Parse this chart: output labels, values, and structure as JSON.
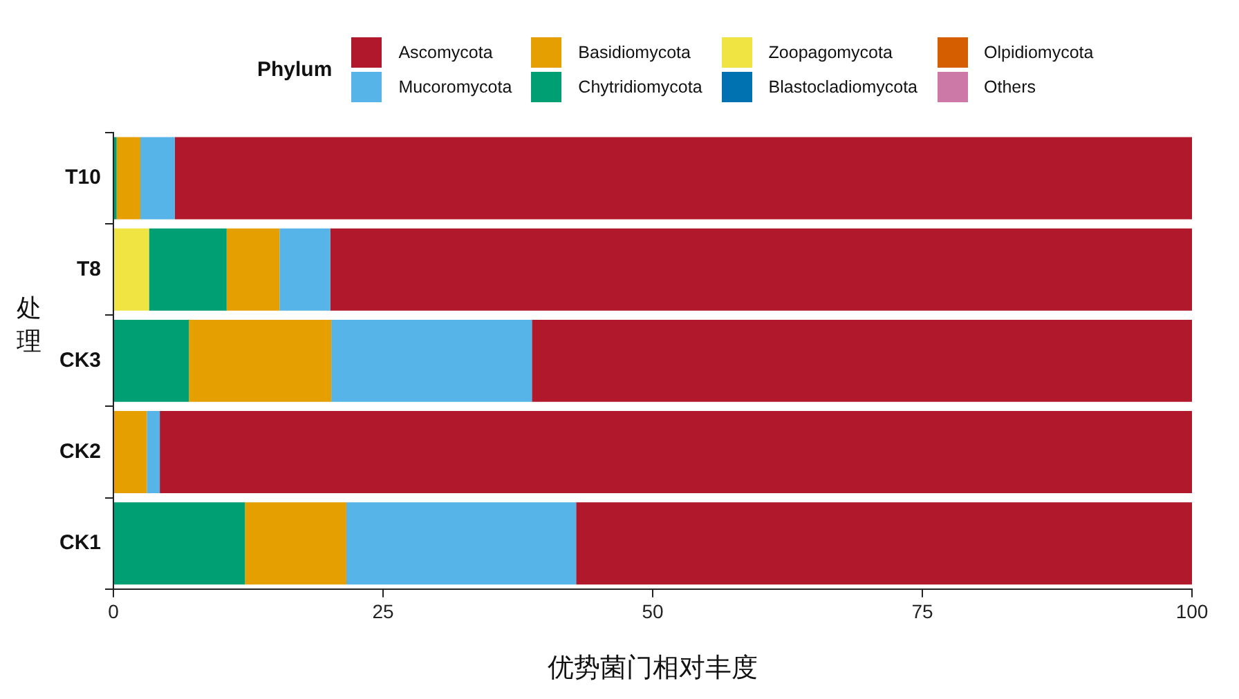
{
  "chart_data": {
    "type": "bar",
    "orientation": "horizontal",
    "stacked": true,
    "xlabel": "优势菌门相对丰度",
    "ylabel": "处理",
    "legend_title": "Phylum",
    "legend": "top",
    "grid": false,
    "categories": [
      "T10",
      "T8",
      "CK3",
      "CK2",
      "CK1"
    ],
    "xlim": [
      0,
      100
    ],
    "xticks": [
      0,
      25,
      50,
      75,
      100
    ],
    "series": [
      {
        "name": "Others",
        "color": "#cc79a7",
        "values": [
          0,
          0,
          0,
          0,
          0
        ]
      },
      {
        "name": "Olpidiomycota",
        "color": "#d55e00",
        "values": [
          0,
          0,
          0,
          0,
          0
        ]
      },
      {
        "name": "Blastocladiomycota",
        "color": "#0072b2",
        "values": [
          0,
          0,
          0,
          0,
          0
        ]
      },
      {
        "name": "Zoopagomycota",
        "color": "#f0e442",
        "values": [
          0,
          3.3,
          0,
          0,
          0
        ]
      },
      {
        "name": "Chytridiomycota",
        "color": "#009e73",
        "values": [
          0.3,
          7.2,
          7.0,
          0,
          12.2
        ]
      },
      {
        "name": "Basidiomycota",
        "color": "#e69f00",
        "values": [
          2.2,
          4.9,
          13.2,
          3.1,
          9.4
        ]
      },
      {
        "name": "Mucoromycota",
        "color": "#56b4e9",
        "values": [
          3.2,
          4.7,
          18.6,
          1.2,
          21.3
        ]
      },
      {
        "name": "Ascomycota",
        "color": "#b2182b",
        "values": [
          94.3,
          79.9,
          61.2,
          95.7,
          57.1
        ]
      }
    ]
  }
}
